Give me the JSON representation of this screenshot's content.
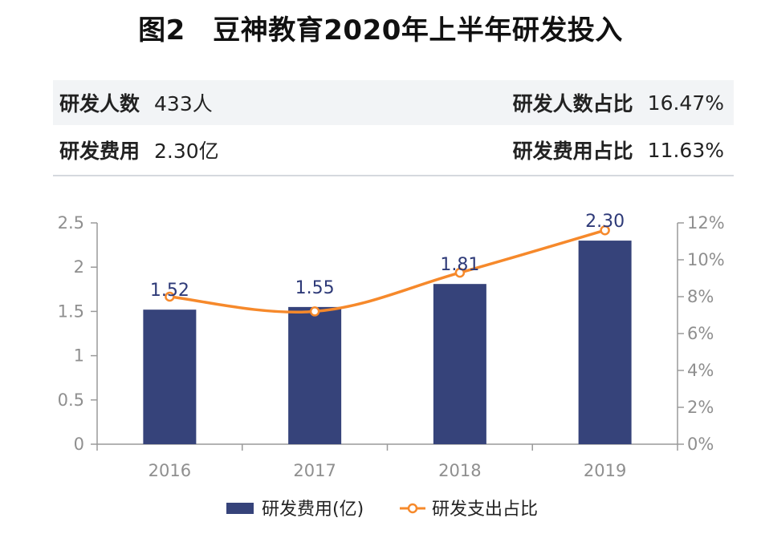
{
  "title": "图2　豆神教育2020年上半年研发投入",
  "stats": {
    "row1": {
      "left_label": "研发人数",
      "left_value": "433人",
      "right_label": "研发人数占比",
      "right_value": "16.47%"
    },
    "row2": {
      "left_label": "研发费用",
      "left_value": "2.30亿",
      "right_label": "研发费用占比",
      "right_value": "11.63%"
    }
  },
  "colors": {
    "bar": "#36437a",
    "line": "#f6892b",
    "axis": "#9a9a9a"
  },
  "chart_data": {
    "type": "bar",
    "categories": [
      "2016",
      "2017",
      "2018",
      "2019"
    ],
    "series": [
      {
        "name": "研发费用(亿)",
        "type": "bar",
        "axis": "left",
        "values": [
          1.52,
          1.55,
          1.81,
          2.3
        ]
      },
      {
        "name": "研发支出占比",
        "type": "line",
        "axis": "right",
        "values": [
          8.0,
          7.2,
          9.3,
          11.6
        ]
      }
    ],
    "bar_labels": [
      "1.52",
      "1.55",
      "1.81",
      "2.30"
    ],
    "left_axis": {
      "range": [
        0,
        2.5
      ],
      "ticks": [
        0,
        0.5,
        1,
        1.5,
        2,
        2.5
      ],
      "tick_labels": [
        "0",
        "0.5",
        "1",
        "1.5",
        "2",
        "2.5"
      ]
    },
    "right_axis": {
      "range": [
        0,
        12
      ],
      "ticks": [
        0,
        2,
        4,
        6,
        8,
        10,
        12
      ],
      "tick_labels": [
        "0%",
        "2%",
        "4%",
        "6%",
        "8%",
        "10%",
        "12%"
      ]
    },
    "legend": [
      "研发费用(亿)",
      "研发支出占比"
    ],
    "legend_position": "bottom-center"
  }
}
